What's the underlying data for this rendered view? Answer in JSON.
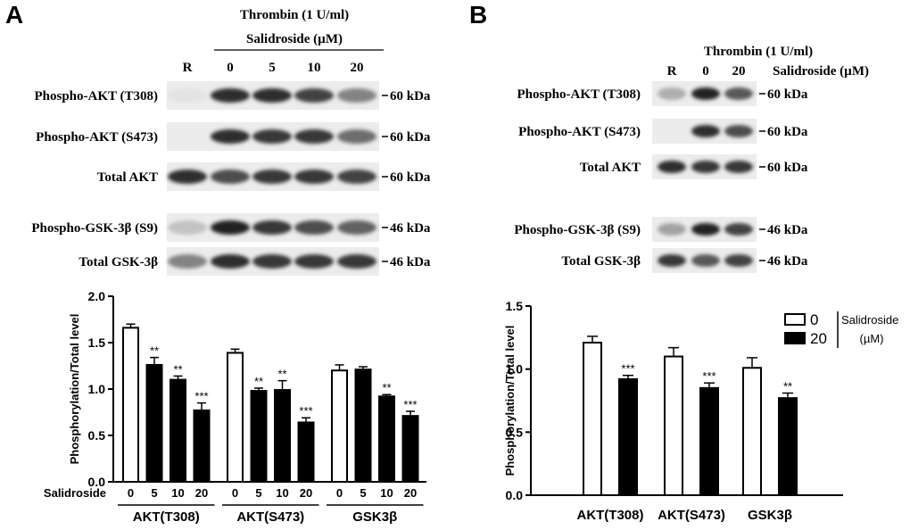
{
  "panel_a": {
    "letter": "A",
    "blot": {
      "treatment": "Thrombin (1 U/ml)",
      "subtreatment": "Salidroside (µM)",
      "lanes": [
        "R",
        "0",
        "5",
        "10",
        "20"
      ],
      "rows": [
        {
          "label": "Phospho-AKT (T308)",
          "mw": "60 kDa",
          "intensity": [
            0.05,
            0.9,
            0.9,
            0.8,
            0.5
          ]
        },
        {
          "label": "Phospho-AKT (S473)",
          "mw": "60 kDa",
          "intensity": [
            0.0,
            0.9,
            0.85,
            0.85,
            0.6
          ]
        },
        {
          "label": "Total AKT",
          "mw": "60 kDa",
          "intensity": [
            0.9,
            0.75,
            0.85,
            0.85,
            0.8
          ]
        },
        {
          "label": "Phospho-GSK-3β (S9)",
          "mw": "46 kDa",
          "intensity": [
            0.2,
            0.95,
            0.85,
            0.75,
            0.65
          ]
        },
        {
          "label": "Total GSK-3β",
          "mw": "46 kDa",
          "intensity": [
            0.5,
            0.9,
            0.85,
            0.85,
            0.85
          ]
        }
      ]
    }
  },
  "panel_b": {
    "letter": "B",
    "blot": {
      "treatment": "Thrombin (1 U/ml)",
      "subtreatment": "Salidroside (µM)",
      "lanes": [
        "R",
        "0",
        "20"
      ],
      "rows": [
        {
          "label": "Phospho-AKT (T308)",
          "mw": "60 kDa",
          "intensity": [
            0.3,
            0.95,
            0.7
          ]
        },
        {
          "label": "Phospho-AKT (S473)",
          "mw": "60 kDa",
          "intensity": [
            0.0,
            0.9,
            0.75
          ]
        },
        {
          "label": "Total AKT",
          "mw": "60 kDa",
          "intensity": [
            0.9,
            0.85,
            0.85
          ]
        },
        {
          "label": "Phospho-GSK-3β (S9)",
          "mw": "46 kDa",
          "intensity": [
            0.35,
            0.95,
            0.8
          ]
        },
        {
          "label": "Total GSK-3β",
          "mw": "46 kDa",
          "intensity": [
            0.85,
            0.7,
            0.8
          ]
        }
      ]
    }
  },
  "chart_data": [
    {
      "type": "bar",
      "ylabel": "Phosphorylation/Total level",
      "ylim": [
        0,
        2.0
      ],
      "yticks": [
        "0.0",
        "0.5",
        "1.0",
        "1.5",
        "2.0"
      ],
      "xrow_label": "Salidroside",
      "sub_categories": [
        "0",
        "5",
        "10",
        "20"
      ],
      "groups": [
        {
          "name": "AKT(T308)",
          "values": [
            1.66,
            1.26,
            1.1,
            0.77
          ],
          "errors": [
            0.04,
            0.08,
            0.04,
            0.08
          ],
          "sig": [
            "",
            "**",
            "**",
            "***"
          ]
        },
        {
          "name": "AKT(S473)",
          "values": [
            1.39,
            0.98,
            0.99,
            0.64
          ],
          "errors": [
            0.04,
            0.03,
            0.1,
            0.05
          ],
          "sig": [
            "",
            "**",
            "**",
            "***"
          ]
        },
        {
          "name": "GSK3β",
          "values": [
            1.2,
            1.21,
            0.92,
            0.71
          ],
          "errors": [
            0.06,
            0.03,
            0.02,
            0.05
          ],
          "sig": [
            "",
            "",
            "**",
            "***"
          ]
        }
      ],
      "bar_colors": [
        "#ffffff",
        "#000000",
        "#000000",
        "#000000"
      ]
    },
    {
      "type": "bar",
      "ylabel": "Phosphorylation/Total level",
      "ylim": [
        0,
        1.5
      ],
      "yticks": [
        "0.0",
        "0.5",
        "1.0",
        "1.5"
      ],
      "categories": [
        "AKT(T308)",
        "AKT(S473)",
        "GSK3β"
      ],
      "series": [
        {
          "name": "0",
          "values": [
            1.21,
            1.1,
            1.01
          ],
          "errors": [
            0.05,
            0.07,
            0.08
          ],
          "sig": [
            "",
            "",
            ""
          ],
          "color": "#ffffff"
        },
        {
          "name": "20",
          "values": [
            0.92,
            0.85,
            0.77
          ],
          "errors": [
            0.03,
            0.04,
            0.04
          ],
          "sig": [
            "***",
            "***",
            "**"
          ],
          "color": "#000000"
        }
      ],
      "legend": {
        "title": "Salidroside",
        "unit": "(µM)",
        "position": "top-right"
      }
    }
  ]
}
